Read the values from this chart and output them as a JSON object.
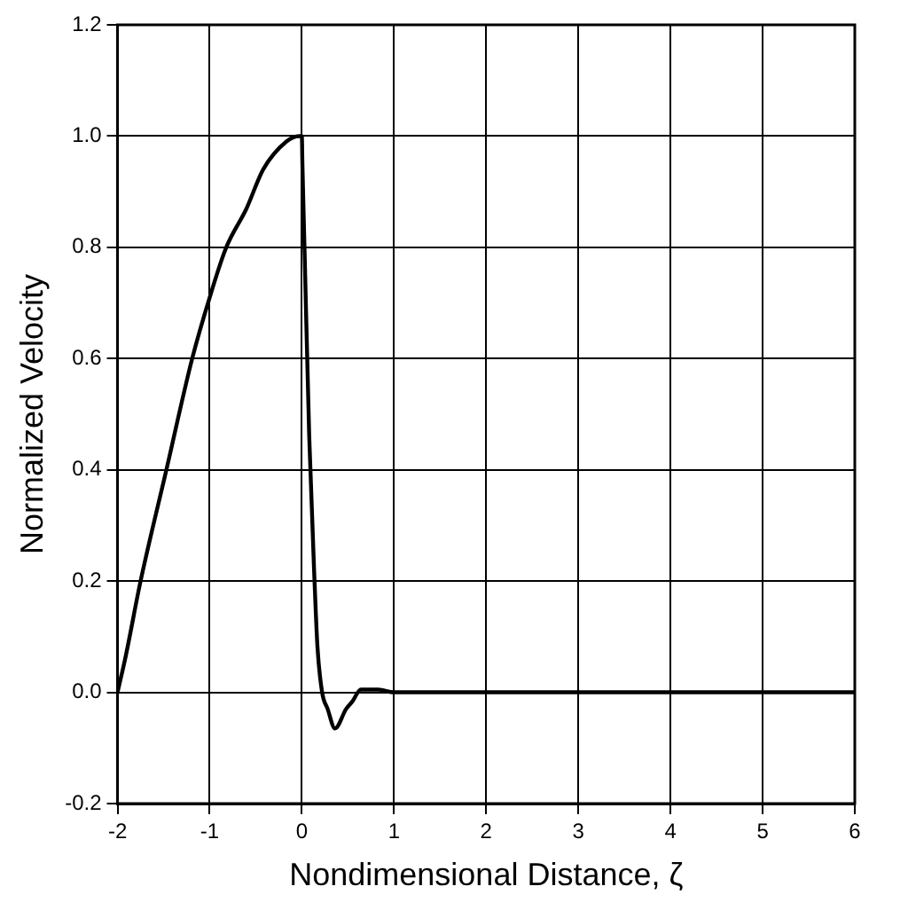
{
  "chart_data": {
    "type": "line",
    "xlabel": "Nondimensional Distance, ζ",
    "ylabel": "Normalized Velocity",
    "xlim": [
      -2,
      6
    ],
    "ylim": [
      -0.2,
      1.2
    ],
    "xticks": [
      -2,
      -1,
      0,
      1,
      2,
      3,
      4,
      5,
      6
    ],
    "yticks": [
      {
        "value": -0.2,
        "label": "-0.2"
      },
      {
        "value": 0,
        "label": "0.0"
      },
      {
        "value": 0.2,
        "label": "0.2"
      },
      {
        "value": 0.4,
        "label": "0.4"
      },
      {
        "value": 0.6,
        "label": "0.6"
      },
      {
        "value": 0.8,
        "label": "0.8"
      },
      {
        "value": 1,
        "label": "1.0"
      },
      {
        "value": 1.2,
        "label": "1.2"
      }
    ],
    "grid": true,
    "marker": "none",
    "line_style": "solid",
    "series": [
      {
        "color": "#000000",
        "x": [
          -2,
          -1.91,
          -1.75,
          -1.47,
          -1.19,
          -1,
          -0.82,
          -0.6,
          -0.42,
          -0.17,
          -0.03,
          0,
          0.006,
          0.03,
          0.08,
          0.14,
          0.17,
          0.22,
          0.28,
          0.36,
          0.48,
          0.55,
          0.64,
          0.83,
          1,
          2,
          3,
          4,
          5,
          6
        ],
        "values": [
          0,
          0.066,
          0.2,
          0.4,
          0.6,
          0.71,
          0.8,
          0.87,
          0.94,
          0.99,
          1,
          1,
          0.95,
          0.79,
          0.46,
          0.19,
          0.08,
          0,
          -0.03,
          -0.065,
          -0.03,
          -0.016,
          0.005,
          0.005,
          0,
          0,
          0,
          0,
          0,
          0
        ]
      }
    ]
  }
}
